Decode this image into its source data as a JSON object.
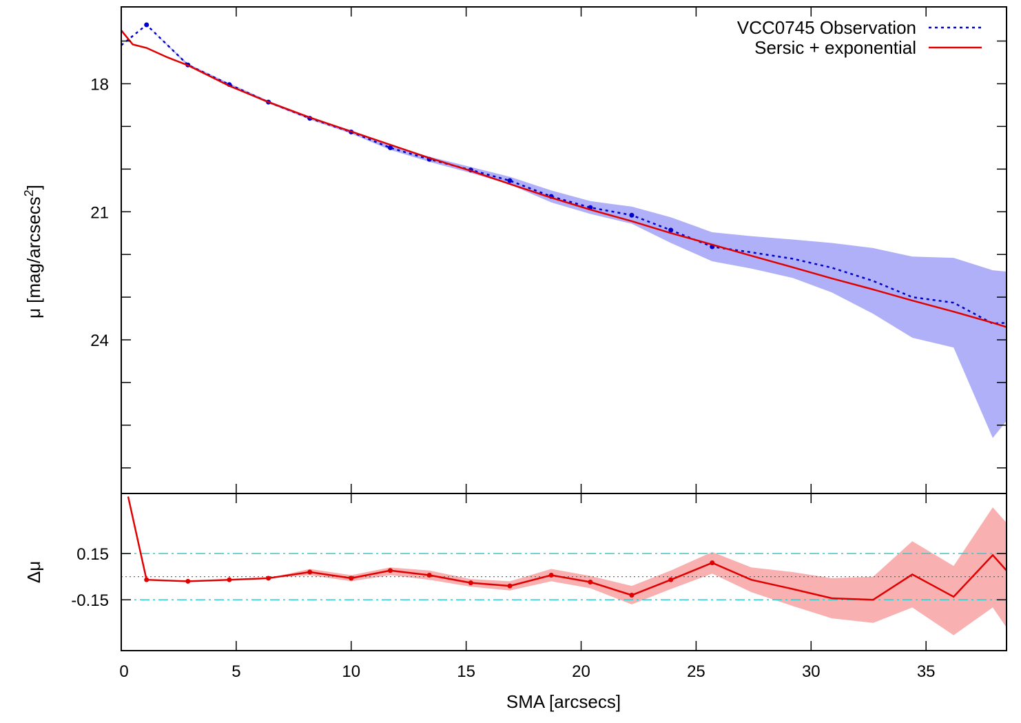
{
  "chart_data": [
    {
      "type": "line",
      "panel": "profile",
      "ylabel": "μ [mag/arcsecs²]",
      "ylabel_parts": {
        "main": "μ [mag/arcsecs",
        "sup": "2",
        "end": "]"
      },
      "xlim": [
        0,
        38.5
      ],
      "ylim": [
        27.6,
        16.2
      ],
      "y_inverted": true,
      "yticks": [
        18,
        21,
        24
      ],
      "yminor_ticks": [
        17,
        19,
        20,
        22,
        23,
        25,
        26,
        27
      ],
      "legend_position": "top-right",
      "series": [
        {
          "name": "VCC0745 Observation",
          "style": "dotted",
          "color": "#0000cc",
          "band_color": "#b0b0f8",
          "x": [
            0,
            1.1,
            2.9,
            4.7,
            6.4,
            8.2,
            10.0,
            11.7,
            13.4,
            15.2,
            16.9,
            18.7,
            20.4,
            22.2,
            23.9,
            25.7,
            27.4,
            29.2,
            30.9,
            32.7,
            34.4,
            36.2,
            37.9,
            38.5
          ],
          "values": [
            17.1,
            16.62,
            17.56,
            18.02,
            18.43,
            18.81,
            19.13,
            19.5,
            19.77,
            20.02,
            20.27,
            20.64,
            20.9,
            21.08,
            21.43,
            21.82,
            21.95,
            22.1,
            22.31,
            22.62,
            23.0,
            23.13,
            23.62,
            23.6
          ],
          "band_low": [
            17.1,
            16.62,
            17.53,
            17.99,
            18.4,
            18.78,
            19.09,
            19.45,
            19.71,
            19.95,
            20.18,
            20.5,
            20.75,
            20.88,
            21.13,
            21.48,
            21.57,
            21.65,
            21.73,
            21.85,
            22.05,
            22.08,
            22.37,
            22.4
          ],
          "band_high": [
            17.1,
            16.62,
            17.59,
            18.05,
            18.46,
            18.84,
            19.17,
            19.55,
            19.83,
            20.09,
            20.36,
            20.78,
            21.05,
            21.28,
            21.73,
            22.16,
            22.33,
            22.55,
            22.89,
            23.39,
            23.95,
            24.18,
            26.3,
            25.9
          ],
          "dots": [
            1.1,
            2.9,
            4.7,
            6.4,
            8.2,
            10.0,
            11.7,
            13.4,
            15.2,
            16.9,
            18.7,
            20.4,
            22.2,
            23.9,
            25.7
          ]
        },
        {
          "name": "Sersic + exponential",
          "style": "solid",
          "color": "#e00000",
          "x": [
            0,
            0.5,
            1.1,
            2.0,
            2.9,
            4.7,
            6.4,
            8.2,
            10.0,
            11.7,
            13.4,
            15.2,
            16.9,
            18.7,
            20.4,
            22.2,
            23.9,
            25.7,
            27.4,
            29.2,
            30.9,
            32.7,
            34.4,
            36.2,
            37.9,
            38.5
          ],
          "values": [
            16.75,
            17.08,
            17.16,
            17.38,
            17.57,
            18.05,
            18.43,
            18.79,
            19.12,
            19.43,
            19.74,
            20.04,
            20.35,
            20.67,
            20.95,
            21.22,
            21.5,
            21.77,
            22.03,
            22.3,
            22.56,
            22.82,
            23.08,
            23.34,
            23.6,
            23.7
          ]
        }
      ]
    },
    {
      "type": "line",
      "panel": "residual",
      "xlabel": "SMA [arcsecs]",
      "ylabel": "Δμ",
      "xlim": [
        0,
        38.5
      ],
      "ylim": [
        -0.48,
        0.54
      ],
      "xticks": [
        0,
        5,
        10,
        15,
        20,
        25,
        30,
        35
      ],
      "yticks": [
        0.15,
        -0.15
      ],
      "ytick_labels": [
        "0.15",
        "-0.15"
      ],
      "reference_lines": [
        {
          "y": 0.15,
          "style": "dash-dot",
          "color": "#33cccc"
        },
        {
          "y": -0.15,
          "style": "dash-dot",
          "color": "#33cccc"
        },
        {
          "y": 0.0,
          "style": "dotted",
          "color": "#555555"
        }
      ],
      "series": [
        {
          "name": "",
          "style": "solid",
          "color": "#e00000",
          "band_color": "#f8b0b0",
          "x": [
            0.3,
            1.1,
            2.9,
            4.7,
            6.4,
            8.2,
            10.0,
            11.7,
            13.4,
            15.2,
            16.9,
            18.7,
            20.4,
            22.2,
            23.9,
            25.7,
            27.4,
            29.2,
            30.9,
            32.7,
            34.4,
            36.2,
            37.9,
            38.5
          ],
          "values": [
            0.52,
            -0.02,
            -0.03,
            -0.02,
            -0.01,
            0.03,
            -0.01,
            0.04,
            0.01,
            -0.04,
            -0.06,
            0.01,
            -0.035,
            -0.12,
            -0.02,
            0.09,
            -0.02,
            -0.08,
            -0.14,
            -0.15,
            0.015,
            -0.13,
            0.14,
            0.04
          ],
          "band_low": [
            0.52,
            -0.02,
            -0.03,
            -0.02,
            -0.01,
            0.01,
            -0.03,
            0.01,
            -0.02,
            -0.065,
            -0.09,
            -0.03,
            -0.075,
            -0.18,
            -0.08,
            0.02,
            -0.1,
            -0.19,
            -0.27,
            -0.3,
            -0.2,
            -0.38,
            -0.2,
            -0.33
          ],
          "band_high": [
            0.52,
            -0.02,
            -0.03,
            -0.02,
            -0.01,
            0.05,
            0.01,
            0.06,
            0.04,
            -0.015,
            -0.03,
            0.05,
            0.005,
            -0.06,
            0.04,
            0.16,
            0.06,
            0.03,
            -0.01,
            0.0,
            0.23,
            0.07,
            0.45,
            0.35
          ],
          "dots": [
            1.1,
            2.9,
            4.7,
            6.4,
            8.2,
            10.0,
            11.7,
            13.4,
            15.2,
            16.9,
            18.7,
            20.4,
            22.2,
            23.9,
            25.7
          ]
        }
      ]
    }
  ]
}
